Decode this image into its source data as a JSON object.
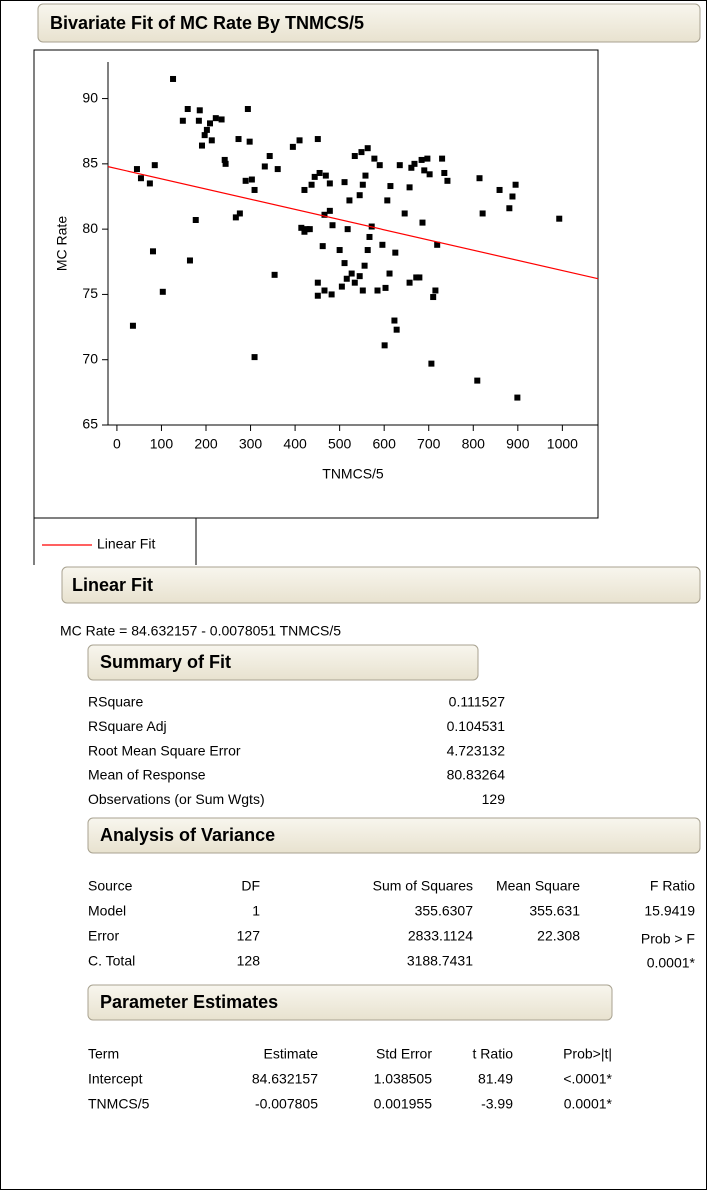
{
  "header": {
    "title": "Bivariate Fit of MC Rate By TNMCS/5"
  },
  "chart_data": {
    "type": "scatter",
    "x_label": "TNMCS/5",
    "y_label": "MC Rate",
    "xlim": [
      -20,
      1080
    ],
    "ylim": [
      65,
      92.8
    ],
    "xticks": [
      0,
      100,
      200,
      300,
      400,
      500,
      600,
      700,
      800,
      900,
      1000
    ],
    "yticks": [
      65,
      70,
      75,
      80,
      85,
      90
    ],
    "color": "#000000",
    "x": [
      36,
      45,
      54,
      74,
      85,
      81,
      103,
      126,
      148,
      159,
      164,
      177,
      186,
      184,
      191,
      197,
      202,
      209,
      213,
      222,
      235,
      242,
      244,
      267,
      276,
      273,
      294,
      289,
      303,
      309,
      332,
      298,
      343,
      354,
      361,
      395,
      410,
      414,
      421,
      426,
      433,
      421,
      437,
      451,
      444,
      455,
      466,
      478,
      462,
      469,
      478,
      484,
      451,
      466,
      451,
      482,
      500,
      518,
      511,
      522,
      505,
      516,
      527,
      534,
      545,
      511,
      534,
      545,
      552,
      549,
      563,
      558,
      567,
      572,
      563,
      556,
      552,
      578,
      585,
      590,
      596,
      603,
      607,
      601,
      612,
      625,
      623,
      628,
      614,
      635,
      646,
      657,
      657,
      661,
      668,
      672,
      679,
      684,
      686,
      690,
      697,
      702,
      706,
      710,
      715,
      719,
      730,
      735,
      742,
      814,
      821,
      809,
      859,
      881,
      888,
      895,
      899,
      993,
      309
    ],
    "y": [
      72.6,
      84.6,
      83.9,
      83.5,
      84.9,
      78.3,
      75.2,
      91.5,
      88.3,
      89.2,
      77.6,
      80.7,
      89.1,
      88.3,
      86.4,
      87.2,
      87.6,
      88.1,
      86.8,
      88.5,
      88.4,
      85.3,
      85.0,
      80.9,
      81.2,
      86.9,
      89.2,
      83.7,
      83.8,
      70.2,
      84.8,
      86.7,
      85.6,
      76.5,
      84.6,
      86.3,
      86.8,
      80.1,
      79.8,
      80.0,
      80.0,
      83.0,
      83.4,
      86.9,
      84.0,
      84.3,
      81.1,
      81.4,
      78.7,
      84.1,
      83.5,
      80.3,
      74.9,
      75.3,
      75.9,
      75.0,
      78.4,
      80.0,
      77.4,
      82.2,
      75.6,
      76.2,
      76.6,
      75.9,
      76.4,
      83.6,
      85.6,
      82.6,
      83.4,
      85.9,
      86.2,
      84.1,
      79.4,
      80.2,
      78.4,
      77.2,
      75.3,
      85.4,
      75.3,
      84.9,
      78.8,
      75.5,
      82.2,
      71.1,
      76.6,
      78.2,
      73.0,
      72.3,
      83.3,
      84.9,
      81.2,
      83.2,
      75.9,
      84.7,
      85.0,
      76.3,
      76.3,
      85.3,
      80.5,
      84.5,
      85.4,
      84.2,
      69.7,
      74.8,
      75.3,
      78.8,
      85.4,
      84.3,
      83.7,
      83.9,
      81.2,
      68.4,
      83.0,
      81.6,
      82.5,
      83.4,
      67.1,
      80.8,
      83.0
    ],
    "fit": {
      "name": "Linear Fit",
      "color": "#ff0000",
      "intercept": 84.632157,
      "slope": -0.0078051
    }
  },
  "linear_fit": {
    "title": "Linear Fit",
    "equation": "MC Rate = 84.632157 - 0.0078051 TNMCS/5"
  },
  "summary_of_fit": {
    "title": "Summary of Fit",
    "rows": [
      [
        "RSquare",
        "0.111527"
      ],
      [
        "RSquare Adj",
        "0.104531"
      ],
      [
        "Root Mean Square Error",
        "4.723132"
      ],
      [
        "Mean of Response",
        "80.83264"
      ],
      [
        "Observations (or Sum Wgts)",
        "129"
      ]
    ]
  },
  "anova": {
    "title": "Analysis of Variance",
    "header": [
      "Source",
      "DF",
      "Sum of Squares",
      "Mean Square",
      "F Ratio"
    ],
    "rows": [
      [
        "Model",
        "1",
        "355.6307",
        "355.631",
        "15.9419"
      ],
      [
        "Error",
        "127",
        "2833.1124",
        "22.308"
      ],
      [
        "C. Total",
        "128",
        "3188.7431"
      ]
    ],
    "prob_f_label": "Prob > F",
    "prob_f": "0.0001*"
  },
  "parameter_estimates": {
    "title": "Parameter Estimates",
    "header": [
      "Term",
      "Estimate",
      "Std Error",
      "t Ratio",
      "Prob>|t|"
    ],
    "rows": [
      [
        "Intercept",
        "84.632157",
        "1.038505",
        "81.49",
        "<.0001*"
      ],
      [
        "TNMCS/5",
        "-0.007805",
        "0.001955",
        "-3.99",
        "0.0001*"
      ]
    ]
  }
}
